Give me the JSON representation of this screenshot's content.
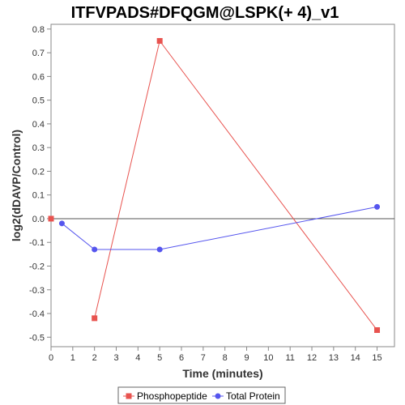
{
  "chart_data": {
    "type": "line",
    "title": "ITFVPADS#DFQGM@LSPK(+ 4)_v1",
    "xlabel": "Time (minutes)",
    "ylabel": "log2(dDAVP/Control)",
    "xlim": [
      0,
      15.8
    ],
    "ylim": [
      -0.54,
      0.82
    ],
    "x_ticks": [
      0,
      1,
      2,
      3,
      4,
      5,
      6,
      7,
      8,
      9,
      10,
      11,
      12,
      13,
      14,
      15
    ],
    "y_ticks": [
      -0.5,
      -0.4,
      -0.3,
      -0.2,
      -0.1,
      0.0,
      0.1,
      0.2,
      0.3,
      0.4,
      0.5,
      0.6,
      0.7,
      0.8
    ],
    "y_tick_labels": [
      "-0.5",
      "-0.4",
      "-0.3",
      "-0.2",
      "-0.1",
      "0.0",
      "0.1",
      "0.2",
      "0.3",
      "0.4",
      "0.5",
      "0.6",
      "0.7",
      "0.8"
    ],
    "zero_line": true,
    "grid": false,
    "legend_position": "bottom",
    "series": [
      {
        "name": "Phosphopeptide",
        "color": "#e8534f",
        "marker": "square",
        "points": [
          [
            0,
            0.0
          ],
          [
            2,
            -0.42
          ],
          [
            5,
            0.75
          ],
          [
            15,
            -0.47
          ]
        ],
        "line_from_index": 1
      },
      {
        "name": "Total Protein",
        "color": "#5555ee",
        "marker": "circle",
        "points": [
          [
            0.5,
            -0.02
          ],
          [
            2,
            -0.13
          ],
          [
            5,
            -0.13
          ],
          [
            15,
            0.05
          ]
        ],
        "line_from_index": 0
      }
    ]
  }
}
